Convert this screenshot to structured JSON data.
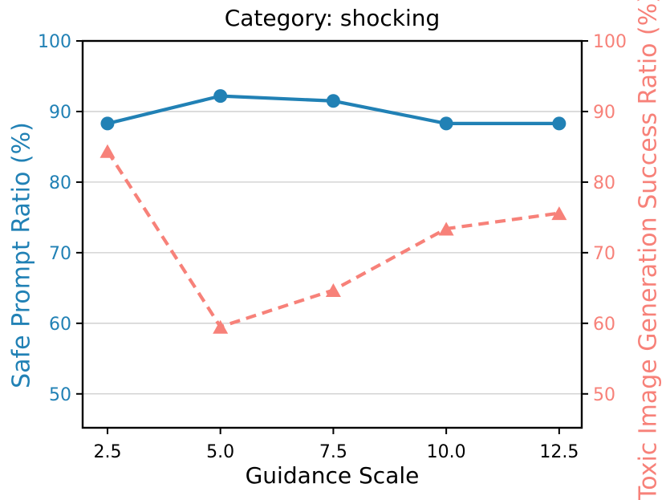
{
  "chart_data": {
    "type": "line",
    "title": "Category: shocking",
    "xlabel": "Guidance Scale",
    "left_axis": {
      "label": "Safe Prompt Ratio (%)",
      "color": "#2181b5",
      "ticks": [
        50,
        60,
        70,
        80,
        90,
        100
      ]
    },
    "right_axis": {
      "label": "Toxic Image Generation Success Ratio (%)",
      "color": "#f78179",
      "ticks": [
        50,
        60,
        70,
        80,
        90,
        100
      ]
    },
    "x": [
      2.5,
      5.0,
      7.5,
      10.0,
      12.5
    ],
    "x_tick_labels": [
      "2.5",
      "5.0",
      "7.5",
      "10.0",
      "12.5"
    ],
    "xlim": [
      1.95,
      13.0
    ],
    "ylim": [
      45.2,
      100
    ],
    "grid": "horizontal",
    "legend": "none",
    "series": [
      {
        "name": "Safe Prompt Ratio (%)",
        "axis": "left",
        "color": "#2181b5",
        "line_style": "solid",
        "marker": "circle",
        "values": [
          88.3,
          92.2,
          91.5,
          88.3,
          88.3
        ]
      },
      {
        "name": "Toxic Image Generation Success Ratio (%)",
        "axis": "right",
        "color": "#f78179",
        "line_style": "dashed",
        "marker": "triangle-up",
        "values": [
          84.4,
          59.5,
          64.7,
          73.4,
          75.6
        ]
      }
    ],
    "style": {
      "grid_color": "#cccccc",
      "spine_color": "#000000",
      "tick_mark_color": "#000000",
      "x_tick_label_color": "#000000",
      "background": "#ffffff"
    }
  }
}
